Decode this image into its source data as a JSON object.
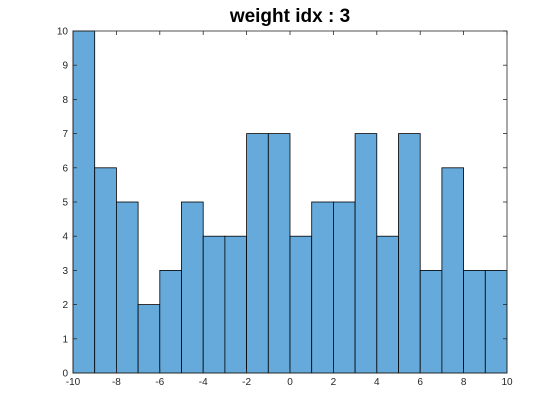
{
  "chart_data": {
    "type": "bar",
    "title": "weight idx : 3",
    "xlabel": "",
    "ylabel": "",
    "xlim": [
      -10,
      10
    ],
    "ylim": [
      0,
      10
    ],
    "bin_edges": [
      -10,
      -9,
      -8,
      -7,
      -6,
      -5,
      -4,
      -3,
      -2,
      -1,
      0,
      1,
      2,
      3,
      4,
      5,
      6,
      7,
      8,
      9,
      10
    ],
    "values": [
      10,
      6,
      5,
      2,
      3,
      5,
      4,
      4,
      7,
      7,
      4,
      5,
      5,
      7,
      4,
      7,
      3,
      6,
      3,
      3
    ],
    "xticks": [
      -10,
      -8,
      -6,
      -4,
      -2,
      0,
      2,
      4,
      6,
      8,
      10
    ],
    "yticks": [
      0,
      1,
      2,
      3,
      4,
      5,
      6,
      7,
      8,
      9,
      10
    ],
    "bar_color": "#66aadb",
    "grid": false,
    "legend": "none"
  }
}
